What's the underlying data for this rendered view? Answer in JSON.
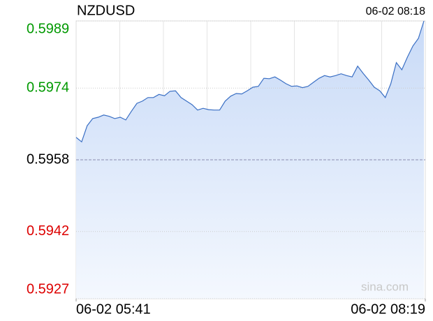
{
  "chart_data": {
    "type": "area",
    "title": "NZDUSD",
    "timestamp": "06-02 08:18",
    "watermark": "sina.com",
    "categories": [
      "06-02 05:41",
      null,
      null,
      null,
      null,
      null,
      null,
      null,
      null,
      null,
      null,
      null,
      null,
      null,
      null,
      null,
      null,
      null,
      null,
      null,
      null,
      null,
      null,
      null,
      null,
      null,
      null,
      null,
      null,
      null,
      null,
      null,
      null,
      null,
      null,
      null,
      null,
      null,
      null,
      null,
      null,
      null,
      null,
      null,
      null,
      null,
      null,
      null,
      null,
      null,
      null,
      null,
      null,
      null,
      null,
      null,
      null,
      null,
      null,
      null,
      null,
      null,
      null,
      "06-02 08:19"
    ],
    "values": [
      0.5963,
      0.5962,
      0.59656,
      0.59672,
      0.59675,
      0.5968,
      0.59677,
      0.59672,
      0.59675,
      0.59669,
      0.59688,
      0.59706,
      0.59711,
      0.59719,
      0.59719,
      0.59726,
      0.59723,
      0.59733,
      0.59734,
      0.59719,
      0.59711,
      0.59703,
      0.59691,
      0.59695,
      0.59692,
      0.59691,
      0.59691,
      0.59711,
      0.59722,
      0.59728,
      0.59727,
      0.59734,
      0.59742,
      0.59744,
      0.59762,
      0.59761,
      0.59765,
      0.59758,
      0.5975,
      0.59744,
      0.59745,
      0.59741,
      0.59744,
      0.59753,
      0.59762,
      0.59768,
      0.59765,
      0.59768,
      0.59772,
      0.59768,
      0.59765,
      0.59789,
      0.59773,
      0.59758,
      0.59742,
      0.59734,
      0.59719,
      0.5975,
      0.59797,
      0.59781,
      0.59809,
      0.59834,
      0.59851,
      0.5989
    ],
    "color": "#3a6fc4",
    "ylim": [
      0.5927,
      0.5989
    ],
    "yticks": [
      0.5989,
      0.5974,
      0.5958,
      0.5942,
      0.5927
    ],
    "ytick_colors": [
      "#009900",
      "#009900",
      "#000000",
      "#dd0000",
      "#dd0000"
    ],
    "grid": true
  }
}
